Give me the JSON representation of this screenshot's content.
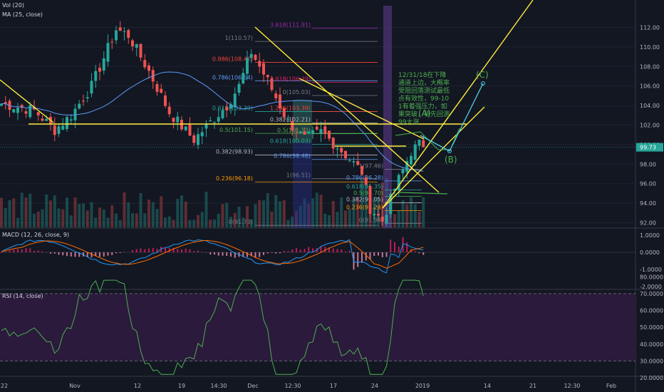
{
  "indicators": {
    "vol_title": "Vol (20)",
    "ma_title": "MA (25, close)",
    "macd_title": "MACD (12, 26, close, 9)",
    "rsi_title": "RSI (14, close)"
  },
  "annotation": {
    "note": "12/31/18在下降通道上边，大概率受阻回落测试最低点有效性，99-101有着强压力，如果突破，将先回测99大涨",
    "wave_a": "(A)",
    "wave_b": "(B)",
    "wave_c": "(C)"
  },
  "colors": {
    "background": "#131722",
    "up": "#26a69a",
    "down": "#ef5350",
    "ma": "#5b9cf6",
    "trendline": "#ffeb3b",
    "macd_line": "#2196f3",
    "signal_line": "#ff6d00",
    "rsi_line": "#4caf50",
    "rsi_band": "#2b1a3c"
  },
  "chart_data": [
    {
      "type": "candlestick",
      "panel": "price",
      "x_tick_labels": [
        "22",
        "Nov",
        "12",
        "19",
        "14:30",
        "Dec",
        "12:30",
        "17",
        "24",
        "2019",
        "14",
        "21",
        "12:30",
        "Feb"
      ],
      "y_tick_labels": [
        "112.00",
        "110.00",
        "108.00",
        "106.00",
        "104.00",
        "102.00",
        "100.00",
        "98.00",
        "96.00",
        "94.00",
        "92.00"
      ],
      "ylim": [
        90.5,
        113
      ],
      "last_price_label": "99.73",
      "overlay": "MA (25, close)",
      "fib_high_set": [
        {
          "level": "1",
          "value": 110.57
        },
        {
          "level": "0.886",
          "value": 108.42
        },
        {
          "level": "0.786",
          "value": 106.54
        },
        {
          "level": "0.618",
          "value": 103.39
        },
        {
          "level": "0.5",
          "value": 101.15
        },
        {
          "level": "0.382",
          "value": 98.93
        },
        {
          "level": "0.236",
          "value": 96.18
        },
        {
          "level": "0",
          "value": 91.73
        }
      ],
      "fib_mid_set": [
        {
          "level": "3.618",
          "value": 111.91
        },
        {
          "level": "2.618",
          "value": 106.39
        },
        {
          "level": "0",
          "value": 105.03
        },
        {
          "level": "1.236",
          "value": 103.39
        },
        {
          "level": "0.382",
          "value": 102.21
        },
        {
          "level": "0.5",
          "value": 101.12
        },
        {
          "level": "0.618",
          "value": 100.03
        },
        {
          "level": "0.786",
          "value": 98.48
        },
        {
          "level": "1",
          "value": 96.51
        }
      ],
      "fib_low_set": [
        {
          "level": "1",
          "value": 97.46
        },
        {
          "level": "0.786",
          "value": 96.28
        },
        {
          "level": "0.618",
          "value": 95.35
        },
        {
          "level": "0.5",
          "value": 94.7
        },
        {
          "level": "0.382",
          "value": 94.05
        },
        {
          "level": "0.236",
          "value": 93.24
        },
        {
          "level": "0",
          "value": 91.94
        }
      ]
    },
    {
      "type": "line",
      "panel": "macd",
      "series": [
        {
          "name": "MACD"
        },
        {
          "name": "Signal"
        }
      ],
      "y_tick_labels": [
        "1.0000",
        "0.0000",
        "-1.0000",
        "-2.0000"
      ],
      "ylim": [
        -2.2,
        1.3
      ]
    },
    {
      "type": "line",
      "panel": "rsi",
      "y_tick_labels": [
        "80.0000",
        "70.0000",
        "60.0000",
        "50.0000",
        "40.0000",
        "30.0000",
        "20.0000"
      ],
      "ylim": [
        18,
        83
      ],
      "band": [
        30,
        70
      ]
    }
  ]
}
